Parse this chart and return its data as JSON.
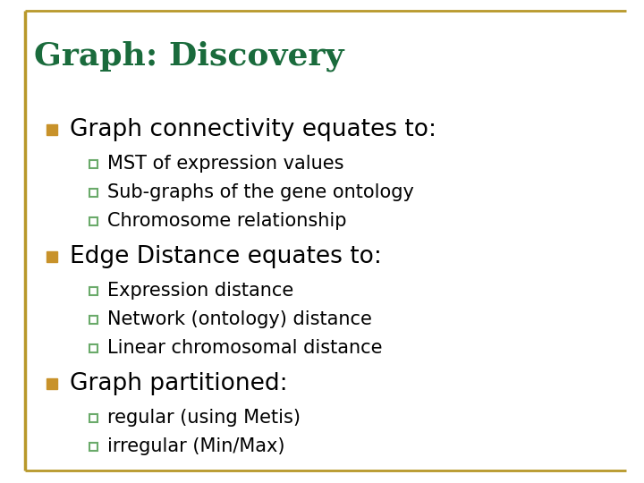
{
  "title": "Graph: Discovery",
  "title_color": "#1a6b3c",
  "background_color": "#ffffff",
  "border_color": "#b8982a",
  "bullet_color": "#c8922a",
  "sub_bullet_edge_color": "#6aaa6a",
  "title_fontsize": 26,
  "main_fontsize": 19,
  "sub_fontsize": 15,
  "main_items": [
    {
      "text": "Graph connectivity equates to:",
      "subitems": [
        "MST of expression values",
        "Sub-graphs of the gene ontology",
        "Chromosome relationship"
      ]
    },
    {
      "text": "Edge Distance equates to:",
      "subitems": [
        "Expression distance",
        "Network (ontology) distance",
        "Linear chromosomal distance"
      ]
    },
    {
      "text": "Graph partitioned:",
      "subitems": [
        "regular (using Metis)",
        "irregular (Min/Max)"
      ]
    }
  ]
}
